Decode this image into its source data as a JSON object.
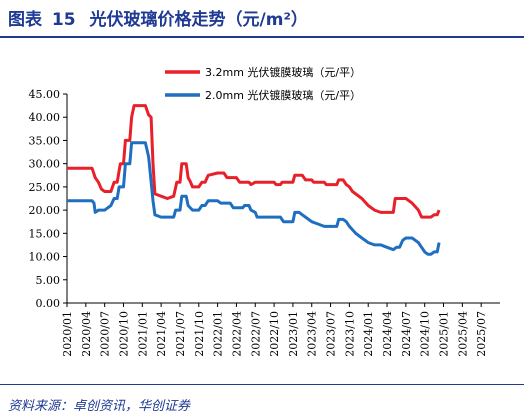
{
  "figure": {
    "label": "图表",
    "number": "15",
    "title": "光伏玻璃价格走势（元/m²）"
  },
  "source": "资料来源：卓创资讯，华创证券",
  "colors": {
    "title": "#1f3a93",
    "series_32": "#e8202a",
    "series_20": "#1f6fc0"
  },
  "chart_data": {
    "type": "line",
    "ylim": [
      0,
      45
    ],
    "yticks": [
      "0.00",
      "5.00",
      "10.00",
      "15.00",
      "20.00",
      "25.00",
      "30.00",
      "35.00",
      "40.00",
      "45.00"
    ],
    "xticks": [
      "2020/01",
      "2020/04",
      "2020/07",
      "2020/10",
      "2021/01",
      "2021/04",
      "2021/07",
      "2021/10",
      "2022/01",
      "2022/04",
      "2022/07",
      "2022/10",
      "2023/01",
      "2023/04",
      "2023/07",
      "2023/10",
      "2024/01",
      "2024/04",
      "2024/07",
      "2024/10",
      "2025/01",
      "2025/04",
      "2025/07"
    ],
    "x_range_months": [
      0,
      69
    ],
    "series": [
      {
        "name": "3.2mm 光伏镀膜玻璃（元/平）",
        "color": "#e8202a",
        "points": [
          [
            0,
            29
          ],
          [
            4,
            29
          ],
          [
            4.5,
            27
          ],
          [
            5,
            26
          ],
          [
            5.5,
            24.5
          ],
          [
            6,
            24
          ],
          [
            7,
            24
          ],
          [
            7.5,
            26
          ],
          [
            8,
            26
          ],
          [
            8.5,
            30
          ],
          [
            9,
            30
          ],
          [
            9.3,
            35
          ],
          [
            10,
            35
          ],
          [
            10.3,
            40
          ],
          [
            10.7,
            42.5
          ],
          [
            12,
            42.5
          ],
          [
            12.5,
            42.5
          ],
          [
            13,
            40.5
          ],
          [
            13.4,
            40
          ],
          [
            13.7,
            30
          ],
          [
            14,
            23.5
          ],
          [
            15,
            23
          ],
          [
            16,
            22.5
          ],
          [
            17,
            23
          ],
          [
            17.5,
            26
          ],
          [
            18,
            26
          ],
          [
            18.3,
            30
          ],
          [
            19,
            30
          ],
          [
            19.3,
            27
          ],
          [
            19.7,
            26
          ],
          [
            20,
            25
          ],
          [
            21,
            25
          ],
          [
            21.5,
            26
          ],
          [
            22,
            26
          ],
          [
            22.5,
            27.5
          ],
          [
            24,
            28
          ],
          [
            25,
            28
          ],
          [
            25.5,
            27
          ],
          [
            27,
            27
          ],
          [
            27.5,
            26
          ],
          [
            28,
            26
          ],
          [
            29,
            26
          ],
          [
            29.3,
            25.5
          ],
          [
            30,
            26
          ],
          [
            33,
            26
          ],
          [
            33.3,
            25.5
          ],
          [
            34,
            25.5
          ],
          [
            34.3,
            26
          ],
          [
            35,
            26
          ],
          [
            36,
            26
          ],
          [
            36.3,
            27.5
          ],
          [
            37.5,
            27.5
          ],
          [
            38,
            26.5
          ],
          [
            39,
            26.5
          ],
          [
            39.3,
            26
          ],
          [
            40,
            26
          ],
          [
            41,
            26
          ],
          [
            41.3,
            25.5
          ],
          [
            42,
            25.5
          ],
          [
            43,
            25.5
          ],
          [
            43.3,
            26.5
          ],
          [
            44,
            26.5
          ],
          [
            44.5,
            25.5
          ],
          [
            45,
            25
          ],
          [
            45.5,
            24
          ],
          [
            47,
            22.5
          ],
          [
            48,
            21
          ],
          [
            49,
            20
          ],
          [
            50,
            19.5
          ],
          [
            52,
            19.5
          ],
          [
            52.3,
            22.5
          ],
          [
            54,
            22.5
          ],
          [
            55,
            21.5
          ],
          [
            56,
            20
          ],
          [
            56.5,
            18.5
          ],
          [
            58,
            18.5
          ],
          [
            58.5,
            19
          ],
          [
            59,
            19
          ],
          [
            59.3,
            20
          ]
        ]
      },
      {
        "name": "2.0mm 光伏镀膜玻璃（元/平）",
        "color": "#1f6fc0",
        "points": [
          [
            0,
            22
          ],
          [
            4,
            22
          ],
          [
            4.3,
            21.5
          ],
          [
            4.5,
            19.5
          ],
          [
            5,
            20
          ],
          [
            6,
            20
          ],
          [
            6.5,
            20.5
          ],
          [
            7,
            21
          ],
          [
            7.5,
            22.5
          ],
          [
            8,
            22.5
          ],
          [
            8.3,
            25
          ],
          [
            9,
            25
          ],
          [
            9.3,
            30
          ],
          [
            10,
            30
          ],
          [
            10.3,
            34.5
          ],
          [
            12,
            34.5
          ],
          [
            12.5,
            34.5
          ],
          [
            13,
            31.5
          ],
          [
            13.3,
            27.5
          ],
          [
            13.7,
            22
          ],
          [
            14,
            19
          ],
          [
            15,
            18.5
          ],
          [
            17,
            18.5
          ],
          [
            17.3,
            20
          ],
          [
            18,
            20
          ],
          [
            18.3,
            23
          ],
          [
            19,
            23
          ],
          [
            19.3,
            21
          ],
          [
            20,
            20
          ],
          [
            21,
            20
          ],
          [
            21.5,
            21
          ],
          [
            22,
            21
          ],
          [
            22.5,
            22
          ],
          [
            24,
            22
          ],
          [
            24.5,
            21.5
          ],
          [
            26,
            21.5
          ],
          [
            26.5,
            20.5
          ],
          [
            28,
            20.5
          ],
          [
            28.3,
            21
          ],
          [
            29,
            21
          ],
          [
            29.3,
            20
          ],
          [
            30,
            19.5
          ],
          [
            30.3,
            18.5
          ],
          [
            33,
            18.5
          ],
          [
            34,
            18.5
          ],
          [
            34.5,
            17.5
          ],
          [
            35,
            17.5
          ],
          [
            36,
            17.5
          ],
          [
            36.3,
            19.5
          ],
          [
            37,
            19.5
          ],
          [
            37.5,
            19
          ],
          [
            38,
            18.5
          ],
          [
            39,
            17.5
          ],
          [
            40,
            17
          ],
          [
            41,
            16.5
          ],
          [
            42,
            16.5
          ],
          [
            43,
            16.5
          ],
          [
            43.3,
            18
          ],
          [
            44,
            18
          ],
          [
            44.5,
            17.5
          ],
          [
            45,
            16.5
          ],
          [
            46,
            15
          ],
          [
            47,
            14
          ],
          [
            48,
            13
          ],
          [
            49,
            12.5
          ],
          [
            50,
            12.5
          ],
          [
            51,
            12
          ],
          [
            52,
            11.5
          ],
          [
            52.5,
            12
          ],
          [
            53,
            12
          ],
          [
            53.5,
            13.5
          ],
          [
            54,
            14
          ],
          [
            55,
            14
          ],
          [
            56,
            13
          ],
          [
            56.5,
            12
          ],
          [
            57,
            11
          ],
          [
            57.5,
            10.5
          ],
          [
            58,
            10.5
          ],
          [
            58.5,
            11
          ],
          [
            59,
            11
          ],
          [
            59.3,
            13
          ]
        ]
      }
    ]
  }
}
